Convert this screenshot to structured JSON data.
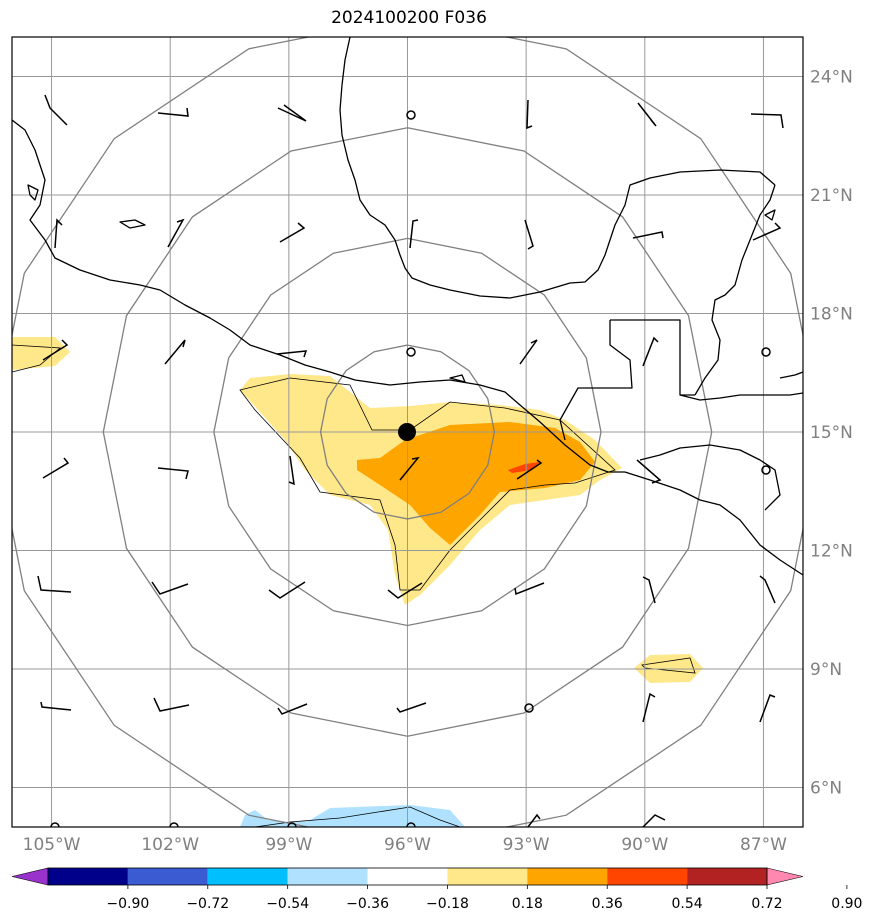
{
  "title": "2024100200 F036",
  "map": {
    "lon_range": [
      -106,
      -86
    ],
    "lat_range": [
      5,
      25
    ],
    "lon_ticks": [
      {
        "value": -105,
        "label": "105°W"
      },
      {
        "value": -102,
        "label": "102°W"
      },
      {
        "value": -99,
        "label": "99°W"
      },
      {
        "value": -96,
        "label": "96°W"
      },
      {
        "value": -93,
        "label": "93°W"
      },
      {
        "value": -90,
        "label": "90°W"
      },
      {
        "value": -87,
        "label": "87°W"
      }
    ],
    "lat_ticks": [
      {
        "value": 6,
        "label": "6°N"
      },
      {
        "value": 9,
        "label": "9°N"
      },
      {
        "value": 12,
        "label": "12°N"
      },
      {
        "value": 15,
        "label": "15°N"
      },
      {
        "value": 18,
        "label": "18°N"
      },
      {
        "value": 21,
        "label": "21°N"
      },
      {
        "value": 24,
        "label": "24°N"
      }
    ],
    "center": {
      "lon": -96,
      "lat": 15
    },
    "range_rings_deg": [
      2.2,
      4.9,
      7.7,
      10.5
    ],
    "colors": {
      "grid": "#999999",
      "ring": "#808080",
      "coast": "#000000",
      "center_marker": "#000000"
    }
  },
  "colorbar": {
    "levels": [
      "−0.90",
      "−0.72",
      "−0.54",
      "−0.36",
      "−0.18",
      "0.18",
      "0.36",
      "0.54",
      "0.72",
      "0.90"
    ],
    "colors": [
      "#9932cc",
      "#00008b",
      "#3a5bd1",
      "#00bfff",
      "#b0e2ff",
      "#ffffff",
      "#ffe88a",
      "#ffa500",
      "#ff4500",
      "#b22222",
      "#ff88b0"
    ]
  }
}
